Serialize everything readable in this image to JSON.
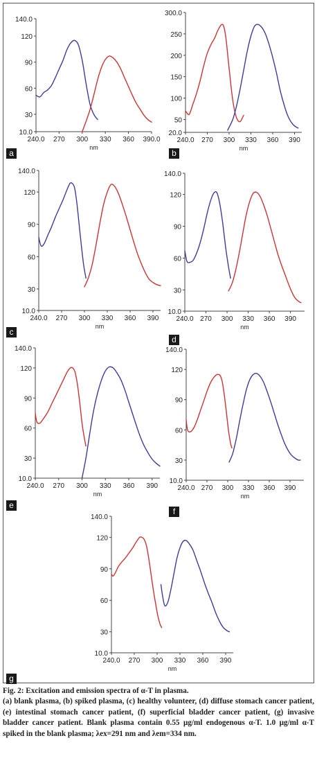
{
  "chart_data": [
    {
      "panel": "a",
      "type": "line",
      "xlabel": "nm",
      "xlim": [
        240,
        390
      ],
      "ylim": [
        10,
        140
      ],
      "xticks": [
        "240.0",
        "270",
        "300",
        "330",
        "360",
        "390.0"
      ],
      "yticks": [
        "10.0",
        "30",
        "60",
        "90",
        "120",
        "140.0"
      ],
      "series": [
        {
          "color": "#3c3c9e",
          "x": [
            240,
            245,
            250,
            255,
            260,
            265,
            270,
            275,
            280,
            285,
            290,
            295,
            300,
            305,
            310,
            315,
            320
          ],
          "y": [
            52,
            50,
            55,
            58,
            63,
            72,
            82,
            92,
            104,
            112,
            115,
            110,
            92,
            65,
            42,
            30,
            24
          ]
        },
        {
          "color": "#cc3333",
          "x": [
            300,
            305,
            310,
            315,
            320,
            325,
            330,
            335,
            340,
            345,
            350,
            355,
            360,
            365,
            370,
            375,
            380,
            385,
            390
          ],
          "y": [
            10,
            22,
            35,
            52,
            70,
            84,
            93,
            97,
            95,
            90,
            82,
            72,
            62,
            52,
            43,
            36,
            29,
            24,
            21
          ]
        }
      ]
    },
    {
      "panel": "b",
      "type": "line",
      "xlabel": "nm",
      "xlim": [
        240,
        400
      ],
      "ylim": [
        20,
        300
      ],
      "xticks": [
        "240.0",
        "270",
        "300",
        "330",
        "360",
        "390"
      ],
      "yticks": [
        "20.0",
        "50",
        "100",
        "150",
        "200",
        "250",
        "300.0"
      ],
      "series": [
        {
          "color": "#cc3333",
          "x": [
            240,
            245,
            250,
            255,
            260,
            265,
            270,
            275,
            280,
            285,
            290,
            293,
            296,
            300,
            305,
            310,
            315,
            320
          ],
          "y": [
            70,
            62,
            85,
            110,
            140,
            175,
            205,
            225,
            240,
            260,
            272,
            265,
            235,
            170,
            95,
            55,
            45,
            60
          ]
        },
        {
          "color": "#3c3c9e",
          "x": [
            298,
            305,
            310,
            315,
            320,
            325,
            330,
            335,
            340,
            345,
            350,
            355,
            360,
            365,
            370,
            375,
            380,
            385,
            390,
            395
          ],
          "y": [
            25,
            50,
            80,
            120,
            165,
            210,
            245,
            268,
            272,
            265,
            250,
            225,
            195,
            160,
            120,
            88,
            62,
            45,
            35,
            30
          ]
        }
      ]
    },
    {
      "panel": "c",
      "type": "line",
      "xlabel": "nm",
      "xlim": [
        240,
        400
      ],
      "ylim": [
        10,
        140
      ],
      "xticks": [
        "240.0",
        "270",
        "300",
        "330",
        "360",
        "390"
      ],
      "yticks": [
        "10.0",
        "30",
        "60",
        "90",
        "120",
        "140.0"
      ],
      "series": [
        {
          "color": "#3c3c9e",
          "x": [
            240,
            243,
            247,
            252,
            257,
            262,
            267,
            272,
            277,
            281,
            284,
            287,
            290,
            293,
            296,
            299,
            302
          ],
          "y": [
            78,
            70,
            72,
            80,
            88,
            97,
            105,
            113,
            122,
            128,
            128,
            124,
            110,
            90,
            70,
            52,
            40
          ]
        },
        {
          "color": "#cc3333",
          "x": [
            300,
            305,
            310,
            315,
            320,
            325,
            330,
            335,
            340,
            345,
            350,
            355,
            360,
            365,
            370,
            375,
            380,
            385,
            390,
            395,
            400
          ],
          "y": [
            32,
            40,
            52,
            70,
            90,
            108,
            120,
            127,
            125,
            118,
            108,
            97,
            85,
            73,
            62,
            53,
            45,
            39,
            36,
            34,
            33
          ]
        }
      ]
    },
    {
      "panel": "d",
      "type": "line",
      "xlabel": "nm",
      "xlim": [
        240,
        410
      ],
      "ylim": [
        10,
        140
      ],
      "xticks": [
        "240.0",
        "270",
        "300",
        "330",
        "360",
        "390"
      ],
      "yticks": [
        "10.0",
        "30",
        "60",
        "90",
        "120",
        "140.0"
      ],
      "series": [
        {
          "color": "#3c3c9e",
          "x": [
            240,
            243,
            247,
            252,
            257,
            262,
            267,
            272,
            277,
            282,
            286,
            290,
            294,
            298,
            302,
            305
          ],
          "y": [
            67,
            57,
            56,
            58,
            65,
            75,
            88,
            103,
            115,
            122,
            121,
            110,
            92,
            70,
            52,
            41
          ]
        },
        {
          "color": "#cc3333",
          "x": [
            302,
            307,
            312,
            317,
            322,
            327,
            332,
            337,
            342,
            347,
            352,
            357,
            362,
            367,
            372,
            377,
            382,
            387,
            392,
            397,
            402,
            405
          ],
          "y": [
            29,
            36,
            48,
            64,
            82,
            100,
            113,
            121,
            122,
            118,
            110,
            100,
            88,
            76,
            64,
            54,
            45,
            36,
            28,
            22,
            19,
            18
          ]
        }
      ]
    },
    {
      "panel": "e",
      "type": "line",
      "xlabel": "nm",
      "xlim": [
        240,
        400
      ],
      "ylim": [
        10,
        140
      ],
      "xticks": [
        "240.0",
        "270",
        "300",
        "330",
        "360",
        "390"
      ],
      "yticks": [
        "10.0",
        "30",
        "60",
        "90",
        "120",
        "140.0"
      ],
      "series": [
        {
          "color": "#cc3333",
          "x": [
            240,
            242,
            246,
            251,
            256,
            261,
            266,
            271,
            276,
            281,
            285,
            288,
            291,
            294,
            297,
            300,
            303,
            305
          ],
          "y": [
            75,
            66,
            65,
            70,
            76,
            84,
            92,
            100,
            108,
            116,
            120,
            120,
            116,
            104,
            86,
            65,
            50,
            42
          ]
        },
        {
          "color": "#3c3c9e",
          "x": [
            300,
            305,
            310,
            315,
            320,
            325,
            330,
            335,
            340,
            345,
            350,
            355,
            360,
            365,
            370,
            375,
            380,
            385,
            390,
            395,
            400
          ],
          "y": [
            10,
            30,
            55,
            78,
            95,
            108,
            117,
            121,
            120,
            115,
            108,
            98,
            86,
            74,
            62,
            51,
            42,
            35,
            29,
            25,
            22
          ]
        }
      ]
    },
    {
      "panel": "f",
      "type": "line",
      "xlabel": "nm",
      "xlim": [
        240,
        410
      ],
      "ylim": [
        10,
        140
      ],
      "xticks": [
        "240.0",
        "270",
        "300",
        "330",
        "360",
        "390"
      ],
      "yticks": [
        "10.0",
        "30",
        "60",
        "90",
        "120",
        "140.0"
      ],
      "series": [
        {
          "color": "#cc3333",
          "x": [
            240,
            242,
            246,
            251,
            256,
            261,
            266,
            271,
            276,
            281,
            285,
            289,
            292,
            295,
            298,
            301,
            304,
            306
          ],
          "y": [
            70,
            60,
            58,
            62,
            70,
            80,
            90,
            100,
            108,
            113,
            115,
            114,
            108,
            95,
            78,
            60,
            47,
            42
          ]
        },
        {
          "color": "#3c3c9e",
          "x": [
            302,
            307,
            312,
            317,
            322,
            327,
            332,
            337,
            342,
            347,
            352,
            357,
            362,
            367,
            372,
            377,
            382,
            387,
            392,
            397,
            402,
            405
          ],
          "y": [
            28,
            36,
            50,
            68,
            85,
            100,
            110,
            115,
            116,
            113,
            107,
            98,
            88,
            77,
            66,
            56,
            47,
            40,
            35,
            32,
            30,
            30
          ]
        }
      ]
    },
    {
      "panel": "g",
      "type": "line",
      "xlabel": "nm",
      "xlim": [
        240,
        400
      ],
      "ylim": [
        10,
        140
      ],
      "xticks": [
        "240.0",
        "270",
        "300",
        "330",
        "360",
        "390"
      ],
      "yticks": [
        "10.0",
        "30",
        "60",
        "90",
        "120",
        "140.0"
      ],
      "series": [
        {
          "color": "#cc3333",
          "x": [
            240,
            242,
            245,
            249,
            253,
            258,
            263,
            268,
            273,
            277,
            280,
            283,
            286,
            289,
            292,
            295,
            298,
            301,
            304,
            306
          ],
          "y": [
            85,
            83,
            86,
            92,
            96,
            100,
            105,
            110,
            116,
            120,
            120,
            118,
            112,
            100,
            85,
            70,
            57,
            45,
            37,
            34
          ]
        },
        {
          "color": "#3c3c9e",
          "x": [
            305,
            307,
            310,
            314,
            318,
            322,
            326,
            330,
            334,
            338,
            342,
            347,
            352,
            357,
            362,
            367,
            372,
            377,
            382,
            387,
            392,
            395
          ],
          "y": [
            75,
            65,
            55,
            58,
            70,
            85,
            100,
            110,
            116,
            117,
            114,
            108,
            98,
            88,
            77,
            67,
            58,
            48,
            40,
            34,
            31,
            30
          ]
        }
      ]
    }
  ],
  "caption": {
    "title": "Fig. 2: Excitation and emission spectra of α-T in plasma.",
    "body": "(a) blank plasma, (b) spiked plasma, (c) healthy volunteer, (d) diffuse stomach cancer patient, (e) intestinal stomach cancer patient, (f) superficial bladder cancer patient, (g) invasive bladder cancer patient. Blank plasma contain 0.55 μg/ml endogenous α-T. 1.0 μg/ml α-T spiked in the blank plasma; λex=291 nm and λem=334 nm."
  }
}
